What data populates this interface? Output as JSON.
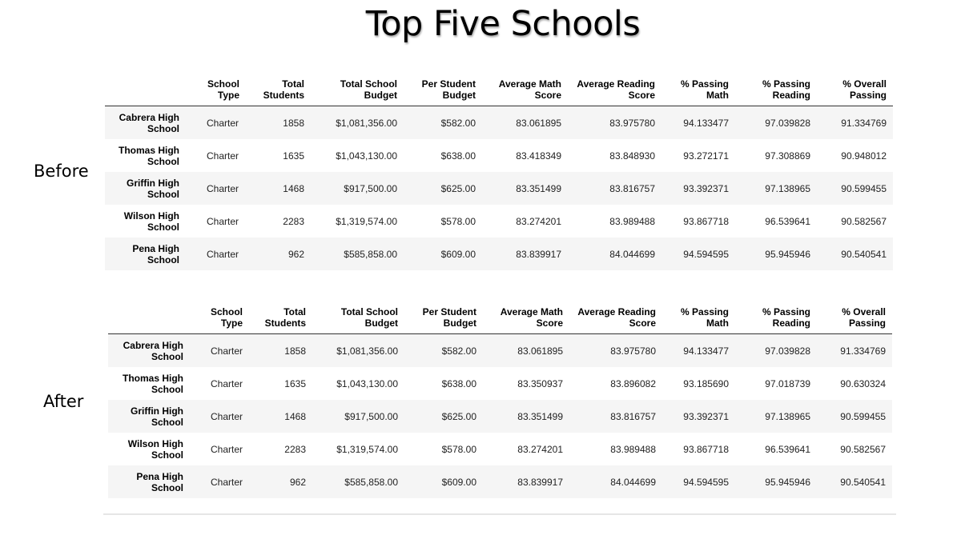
{
  "title": "Top Five Schools",
  "labels": {
    "before": "Before",
    "after": "After"
  },
  "columns": [
    "",
    "School Type",
    "Total Students",
    "Total School Budget",
    "Per Student Budget",
    "Average Math Score",
    "Average Reading Score",
    "% Passing Math",
    "% Passing Reading",
    "% Overall Passing"
  ],
  "column_lines": [
    [
      "",
      ""
    ],
    [
      "School",
      "Type"
    ],
    [
      "Total",
      "Students"
    ],
    [
      "Total School",
      "Budget"
    ],
    [
      "Per Student",
      "Budget"
    ],
    [
      "Average Math",
      "Score"
    ],
    [
      "Average Reading",
      "Score"
    ],
    [
      "% Passing",
      "Math"
    ],
    [
      "% Passing",
      "Reading"
    ],
    [
      "% Overall",
      "Passing"
    ]
  ],
  "before": {
    "rows": [
      {
        "name": [
          "Cabrera High",
          "School"
        ],
        "cells": [
          "Charter",
          "1858",
          "$1,081,356.00",
          "$582.00",
          "83.061895",
          "83.975780",
          "94.133477",
          "97.039828",
          "91.334769"
        ]
      },
      {
        "name": [
          "Thomas High",
          "School"
        ],
        "cells": [
          "Charter",
          "1635",
          "$1,043,130.00",
          "$638.00",
          "83.418349",
          "83.848930",
          "93.272171",
          "97.308869",
          "90.948012"
        ]
      },
      {
        "name": [
          "Griffin High",
          "School"
        ],
        "cells": [
          "Charter",
          "1468",
          "$917,500.00",
          "$625.00",
          "83.351499",
          "83.816757",
          "93.392371",
          "97.138965",
          "90.599455"
        ]
      },
      {
        "name": [
          "Wilson High",
          "School"
        ],
        "cells": [
          "Charter",
          "2283",
          "$1,319,574.00",
          "$578.00",
          "83.274201",
          "83.989488",
          "93.867718",
          "96.539641",
          "90.582567"
        ]
      },
      {
        "name": [
          "Pena High",
          "School"
        ],
        "cells": [
          "Charter",
          "962",
          "$585,858.00",
          "$609.00",
          "83.839917",
          "84.044699",
          "94.594595",
          "95.945946",
          "90.540541"
        ]
      }
    ]
  },
  "after": {
    "rows": [
      {
        "name": [
          "Cabrera High",
          "School"
        ],
        "cells": [
          "Charter",
          "1858",
          "$1,081,356.00",
          "$582.00",
          "83.061895",
          "83.975780",
          "94.133477",
          "97.039828",
          "91.334769"
        ]
      },
      {
        "name": [
          "Thomas High",
          "School"
        ],
        "cells": [
          "Charter",
          "1635",
          "$1,043,130.00",
          "$638.00",
          "83.350937",
          "83.896082",
          "93.185690",
          "97.018739",
          "90.630324"
        ]
      },
      {
        "name": [
          "Griffin High",
          "School"
        ],
        "cells": [
          "Charter",
          "1468",
          "$917,500.00",
          "$625.00",
          "83.351499",
          "83.816757",
          "93.392371",
          "97.138965",
          "90.599455"
        ]
      },
      {
        "name": [
          "Wilson High",
          "School"
        ],
        "cells": [
          "Charter",
          "2283",
          "$1,319,574.00",
          "$578.00",
          "83.274201",
          "83.989488",
          "93.867718",
          "96.539641",
          "90.582567"
        ]
      },
      {
        "name": [
          "Pena High",
          "School"
        ],
        "cells": [
          "Charter",
          "962",
          "$585,858.00",
          "$609.00",
          "83.839917",
          "84.044699",
          "94.594595",
          "95.945946",
          "90.540541"
        ]
      }
    ]
  }
}
